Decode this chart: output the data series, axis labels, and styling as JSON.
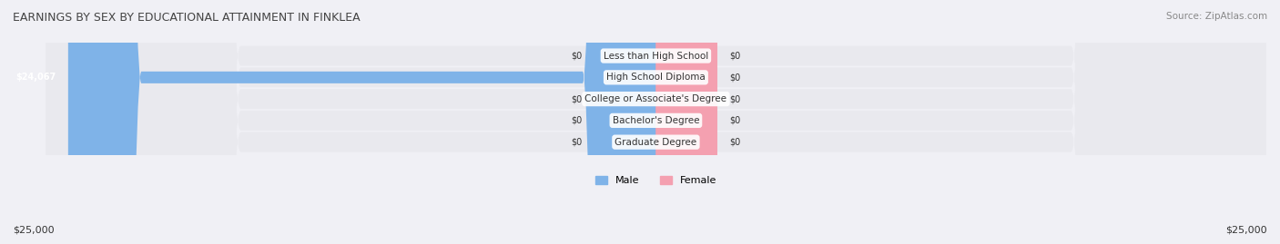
{
  "title": "EARNINGS BY SEX BY EDUCATIONAL ATTAINMENT IN FINKLEA",
  "source": "Source: ZipAtlas.com",
  "categories": [
    "Less than High School",
    "High School Diploma",
    "College or Associate's Degree",
    "Bachelor's Degree",
    "Graduate Degree"
  ],
  "male_values": [
    0,
    24067,
    0,
    0,
    0
  ],
  "female_values": [
    0,
    0,
    0,
    0,
    0
  ],
  "xlim": 25000,
  "male_color": "#7fb3e8",
  "female_color": "#f4a0b0",
  "male_color_dark": "#5b9bd5",
  "female_color_dark": "#f080a0",
  "bar_bg_color": "#e8e8ee",
  "row_bg_color_odd": "#f5f5f8",
  "row_bg_color_even": "#ebebf0",
  "label_color": "#333333",
  "title_color": "#444444",
  "xlabel_left": "$25,000",
  "xlabel_right": "$25,000",
  "legend_male": "Male",
  "legend_female": "Female",
  "bar_height": 0.55,
  "figsize": [
    14.06,
    2.69
  ],
  "dpi": 100
}
